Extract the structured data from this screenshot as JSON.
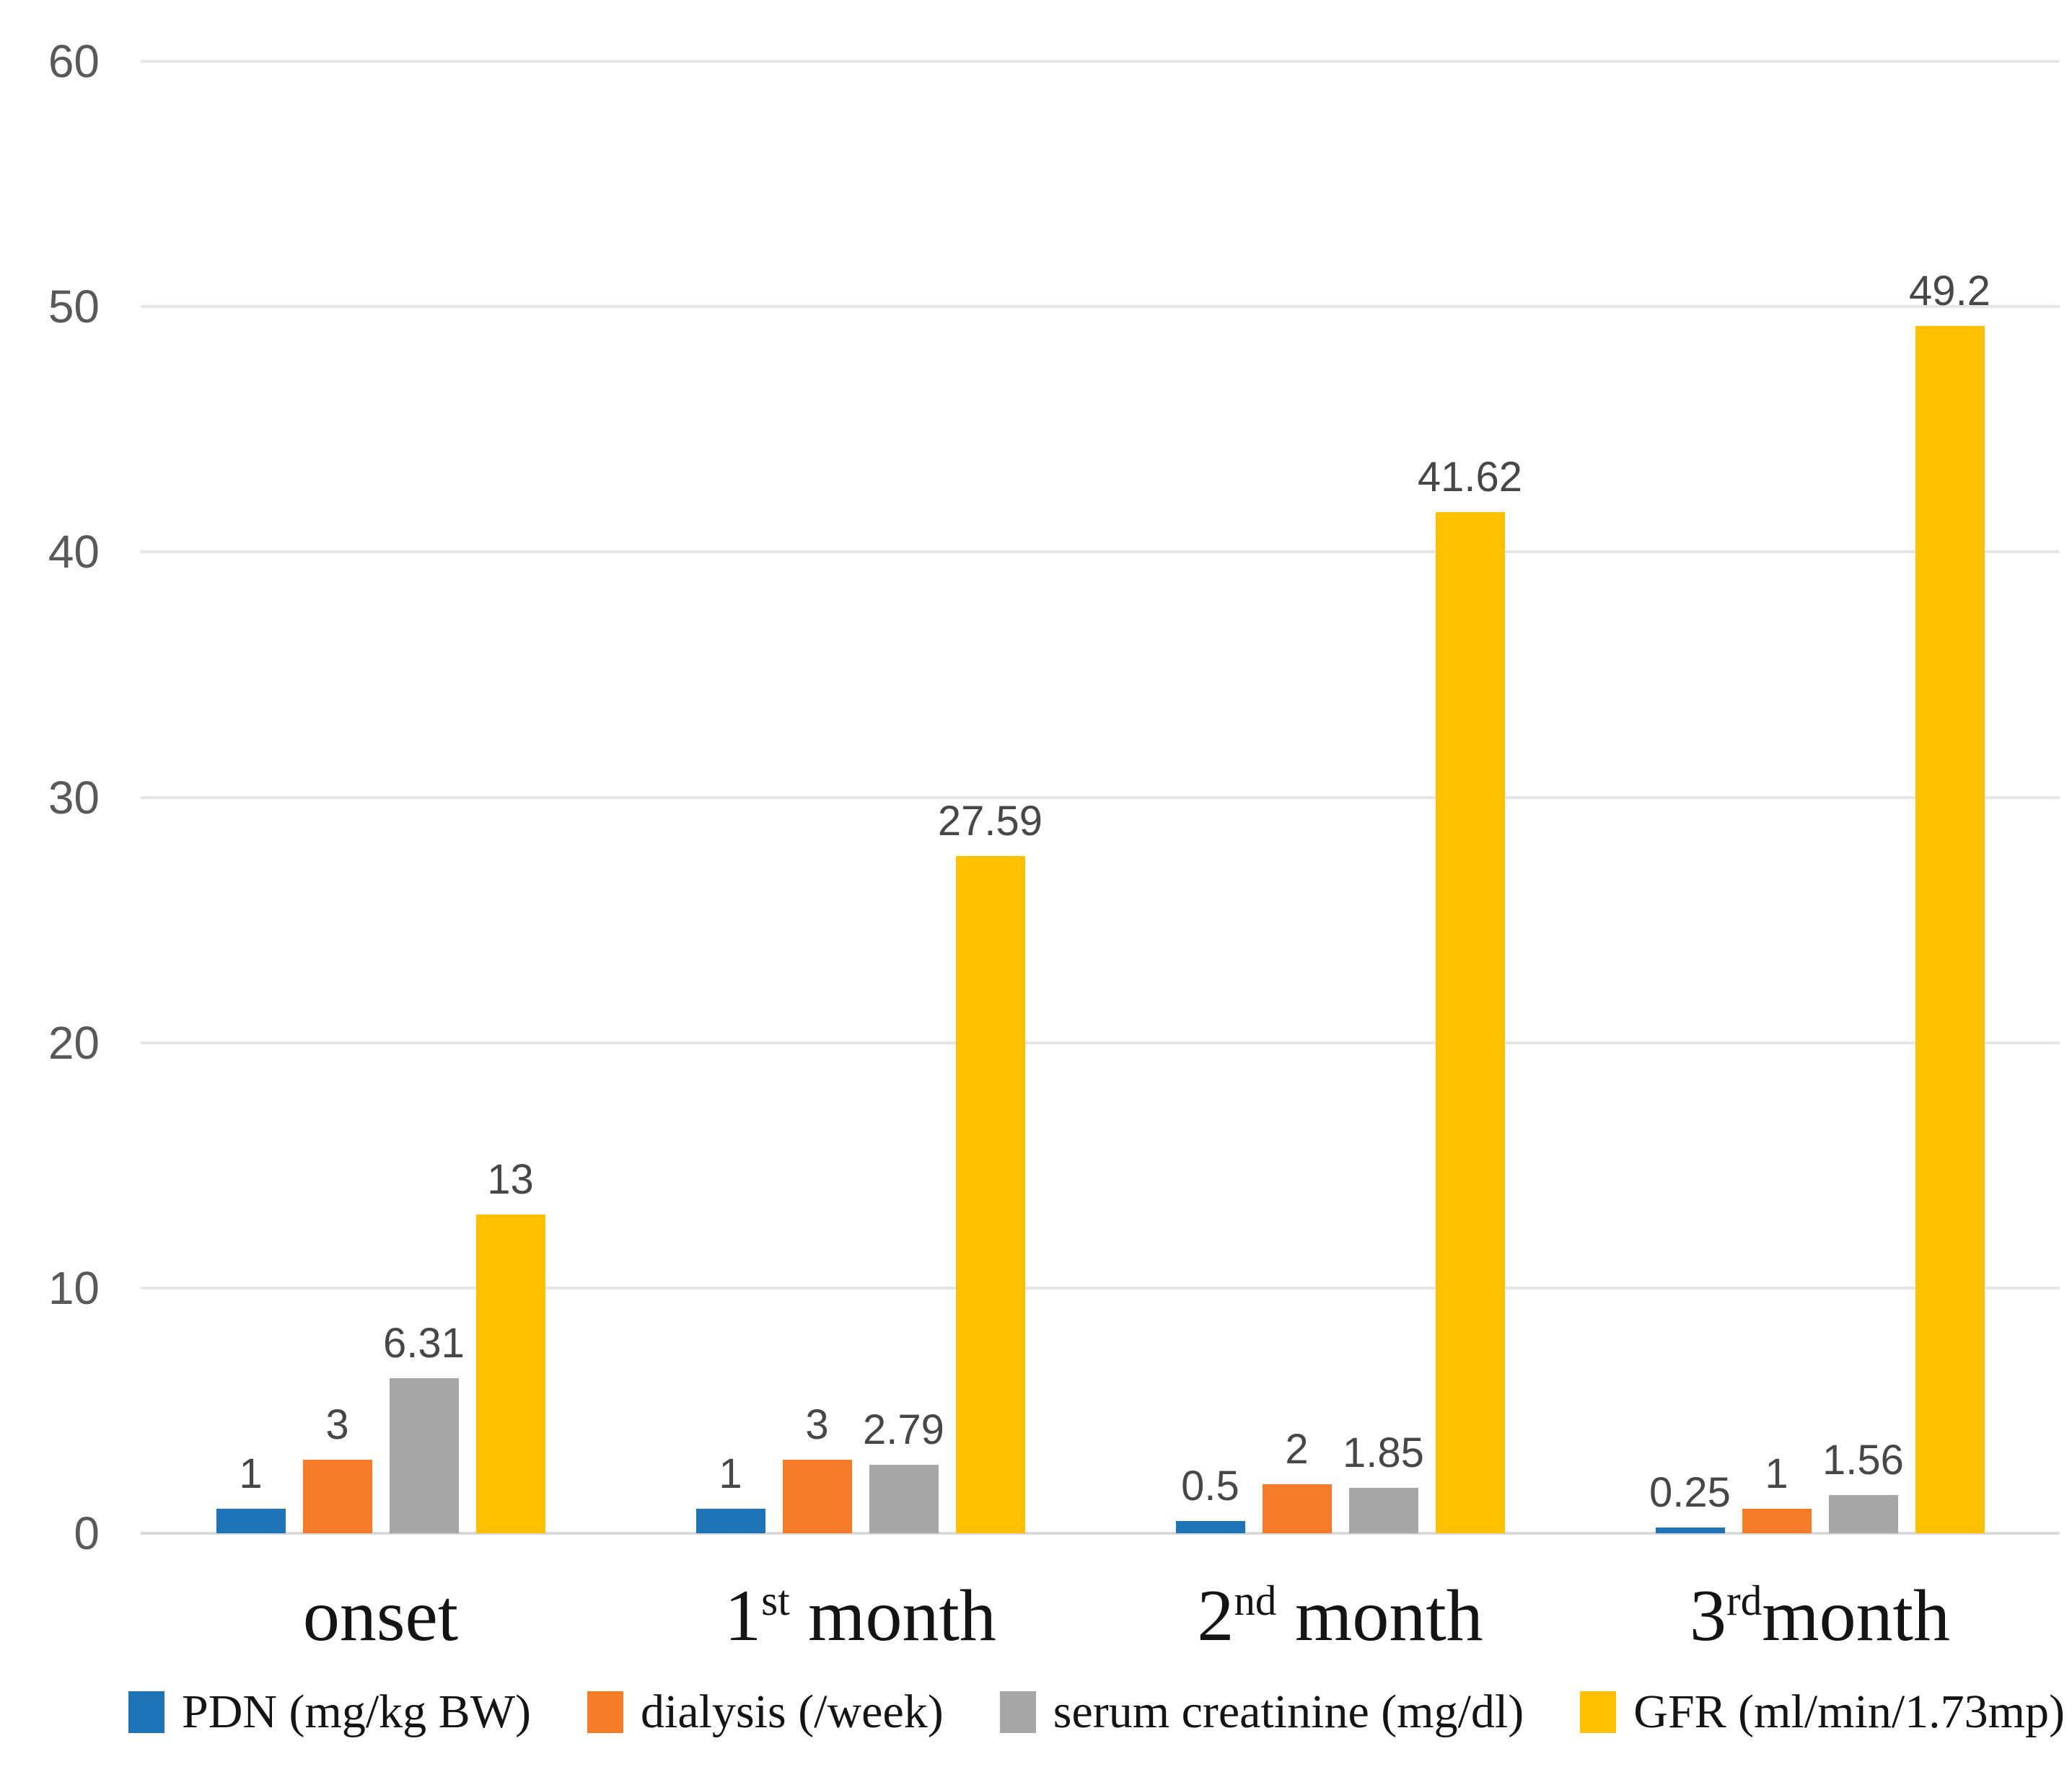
{
  "chart_data": {
    "type": "bar",
    "title": "",
    "xlabel": "",
    "ylabel": "",
    "categories": [
      "onset",
      "1st month",
      "2nd month",
      "3rd month"
    ],
    "categories_rich": [
      {
        "base": "onset",
        "sup": "",
        "rest": ""
      },
      {
        "base": "1",
        "sup": "st",
        "rest": " month"
      },
      {
        "base": "2",
        "sup": "nd",
        "rest": " month"
      },
      {
        "base": "3",
        "sup": "rd",
        "rest": "month"
      }
    ],
    "series": [
      {
        "name": "PDN (mg/kg BW)",
        "color": "#1f74b8",
        "values": [
          1,
          1,
          0.5,
          0.25
        ],
        "labels": [
          "1",
          "1",
          "0.5",
          "0.25"
        ]
      },
      {
        "name": "dialysis (/week)",
        "color": "#f47b28",
        "values": [
          3,
          3,
          2,
          1
        ],
        "labels": [
          "3",
          "3",
          "2",
          "1"
        ]
      },
      {
        "name": "serum creatinine (mg/dl)",
        "color": "#a6a6a6",
        "values": [
          6.31,
          2.79,
          1.85,
          1.56
        ],
        "labels": [
          "6.31",
          "2.79",
          "1.85",
          "1.56"
        ]
      },
      {
        "name": "GFR (ml/min/1.73mp)",
        "color": "#ffc000",
        "values": [
          13,
          27.59,
          41.62,
          49.2
        ],
        "labels": [
          "13",
          "27.59",
          "41.62",
          "49.2"
        ]
      }
    ],
    "yticks": [
      0,
      10,
      20,
      30,
      40,
      50,
      60
    ],
    "ytick_labels": [
      "0",
      "10",
      "20",
      "30",
      "40",
      "50",
      "60"
    ],
    "ylim": [
      0,
      60
    ],
    "grid": true,
    "gridline_color": "#e6e6e6",
    "tick_label_color": "#595959",
    "data_label_color": "#474747",
    "legend_position": "bottom"
  }
}
